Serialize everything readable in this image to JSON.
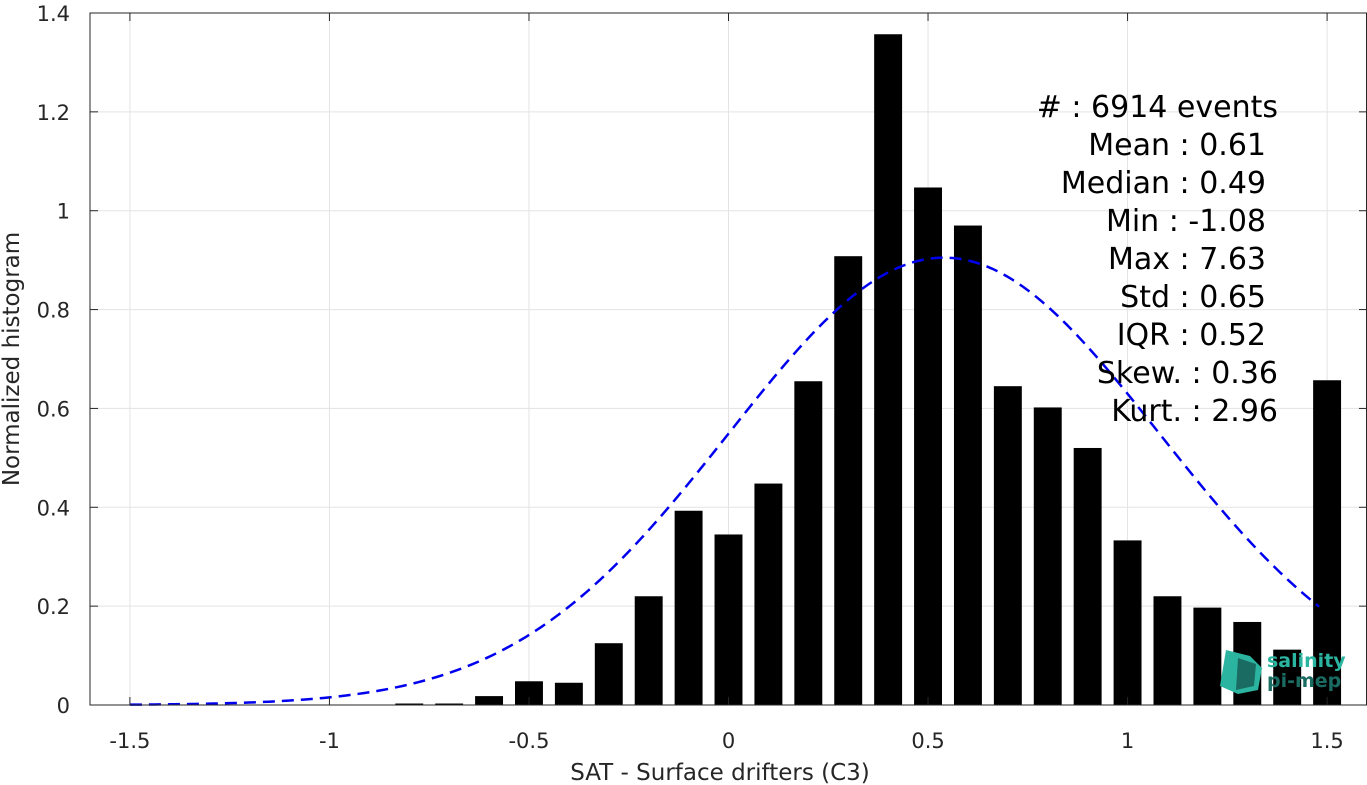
{
  "chart_data": {
    "type": "bar",
    "xlabel": "SAT - Surface drifters (C3)",
    "ylabel": "Normalized histogram",
    "xlim": [
      -1.6,
      1.6
    ],
    "ylim": [
      0,
      1.4
    ],
    "xticks": [
      -1.5,
      -1,
      -0.5,
      0,
      0.5,
      1,
      1.5
    ],
    "xtick_labels": [
      "-1.5",
      "-1",
      "-0.5",
      "0",
      "0.5",
      "1",
      "1.5"
    ],
    "yticks": [
      0,
      0.2,
      0.4,
      0.6,
      0.8,
      1,
      1.2,
      1.4
    ],
    "ytick_labels": [
      "0",
      "0.2",
      "0.4",
      "0.6",
      "0.8",
      "1",
      "1.2",
      "1.4"
    ],
    "grid": true,
    "bar_color": "#000000",
    "bin_width": 0.1,
    "bars": {
      "x": [
        -0.8,
        -0.7,
        -0.6,
        -0.5,
        -0.4,
        -0.3,
        -0.2,
        -0.1,
        0.0,
        0.1,
        0.2,
        0.3,
        0.4,
        0.5,
        0.6,
        0.7,
        0.8,
        0.9,
        1.0,
        1.1,
        1.2,
        1.3,
        1.4,
        1.5
      ],
      "values": [
        0.003,
        0.003,
        0.018,
        0.048,
        0.045,
        0.125,
        0.22,
        0.393,
        0.345,
        0.448,
        0.655,
        0.908,
        1.357,
        1.047,
        0.97,
        0.645,
        0.602,
        0.52,
        0.333,
        0.22,
        0.197,
        0.168,
        0.112,
        0.657
      ]
    },
    "fit_curve": {
      "style": "dashed",
      "color": "#0000ee",
      "x_start": -1.5,
      "x_end": 1.48,
      "peak_y": 0.905,
      "mean": 0.54,
      "std": 0.54
    },
    "stats": [
      "#  : 6914 events",
      "Mean : 0.61",
      "Median : 0.49",
      "Min : -1.08",
      "Max : 7.63",
      "Std : 0.65",
      "IQR : 0.52",
      "Skew. : 0.36",
      "Kurt. : 2.96"
    ]
  },
  "logo": {
    "line1": "salinity",
    "line2": "pi-mep",
    "color_light": "#2bb5a0",
    "color_dark": "#1a6b62"
  }
}
